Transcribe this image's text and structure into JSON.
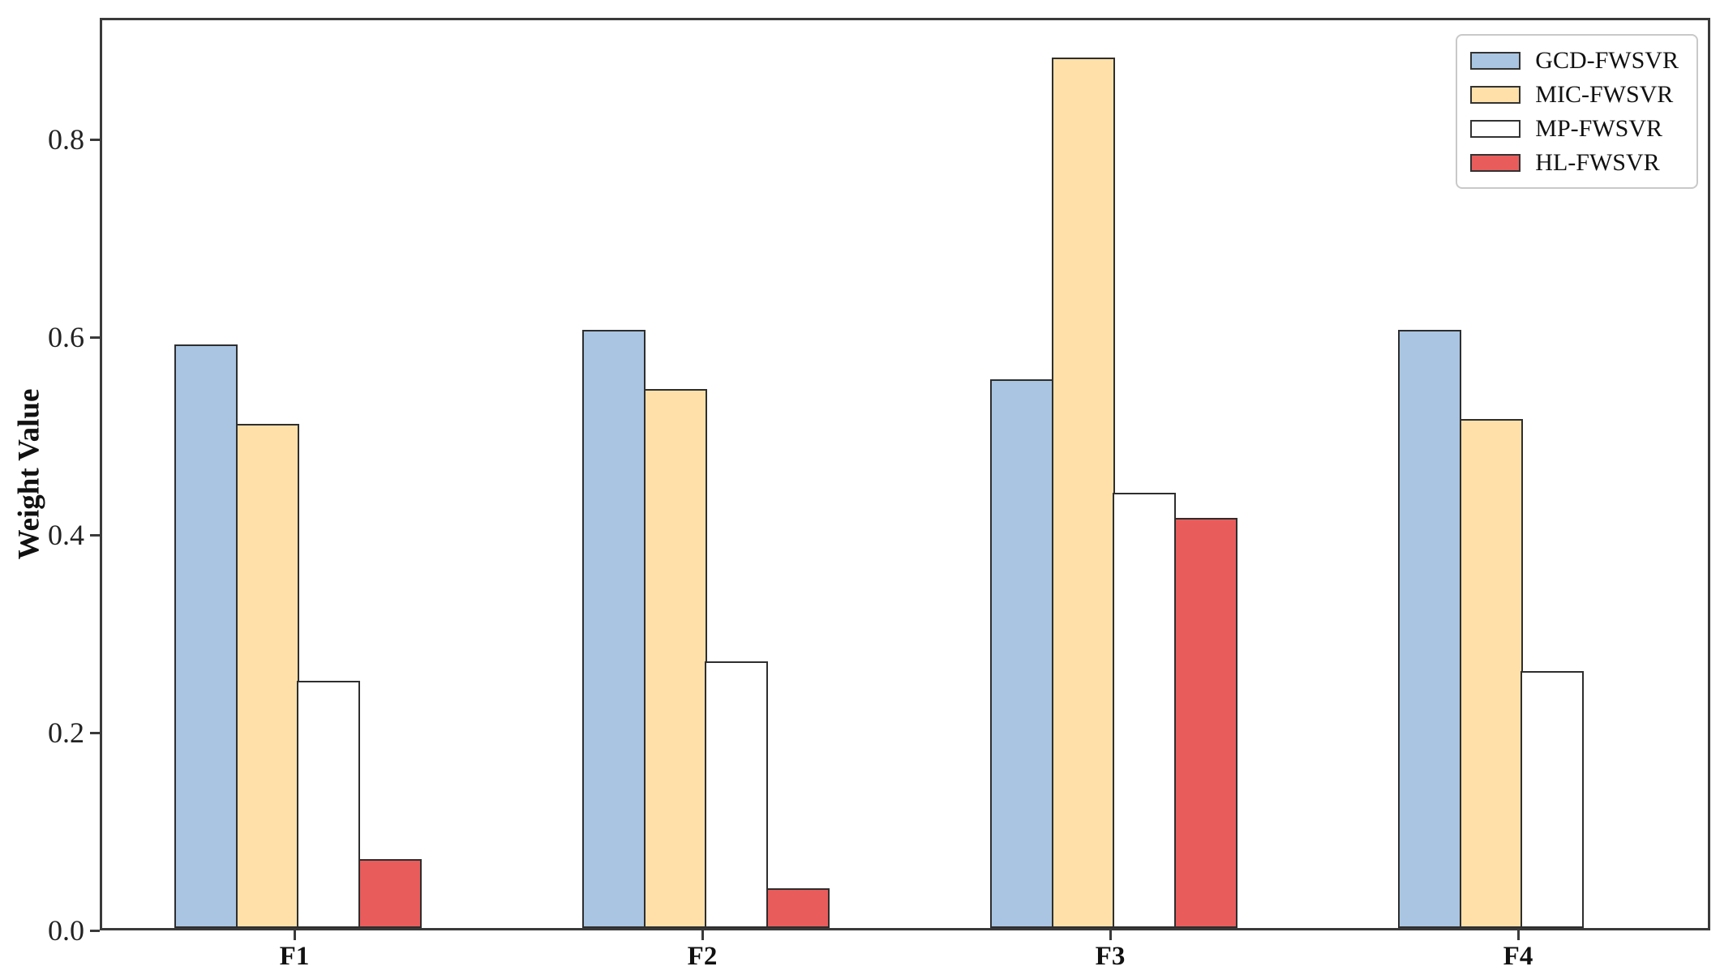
{
  "chart_data": {
    "type": "bar",
    "title": "",
    "categories": [
      "F1",
      "F2",
      "F3",
      "F4"
    ],
    "series": [
      {
        "name": "GCD-FWSVR",
        "color": "#a9c5e2",
        "values": [
          0.59,
          0.605,
          0.555,
          0.605
        ]
      },
      {
        "name": "MIC-FWSVR",
        "color": "#fee0a8",
        "values": [
          0.51,
          0.545,
          0.88,
          0.515
        ]
      },
      {
        "name": "MP-FWSVR",
        "color": "#ffffff",
        "values": [
          0.25,
          0.27,
          0.44,
          0.26
        ]
      },
      {
        "name": "HL-FWSVR",
        "color": "#e95c5c",
        "values": [
          0.07,
          0.04,
          0.415,
          0.0
        ]
      }
    ],
    "xlabel": "",
    "ylabel": "Weight Value",
    "yticks": [
      0.0,
      0.2,
      0.4,
      0.6,
      0.8
    ],
    "ytick_labels": [
      "0.0",
      "0.2",
      "0.4",
      "0.6",
      "0.8"
    ],
    "ylim": [
      0,
      0.923
    ],
    "legend_position": "upper right",
    "grid": false,
    "bar_edge_color": "#2e2e2e",
    "axis_color": "#3a3a3a"
  }
}
